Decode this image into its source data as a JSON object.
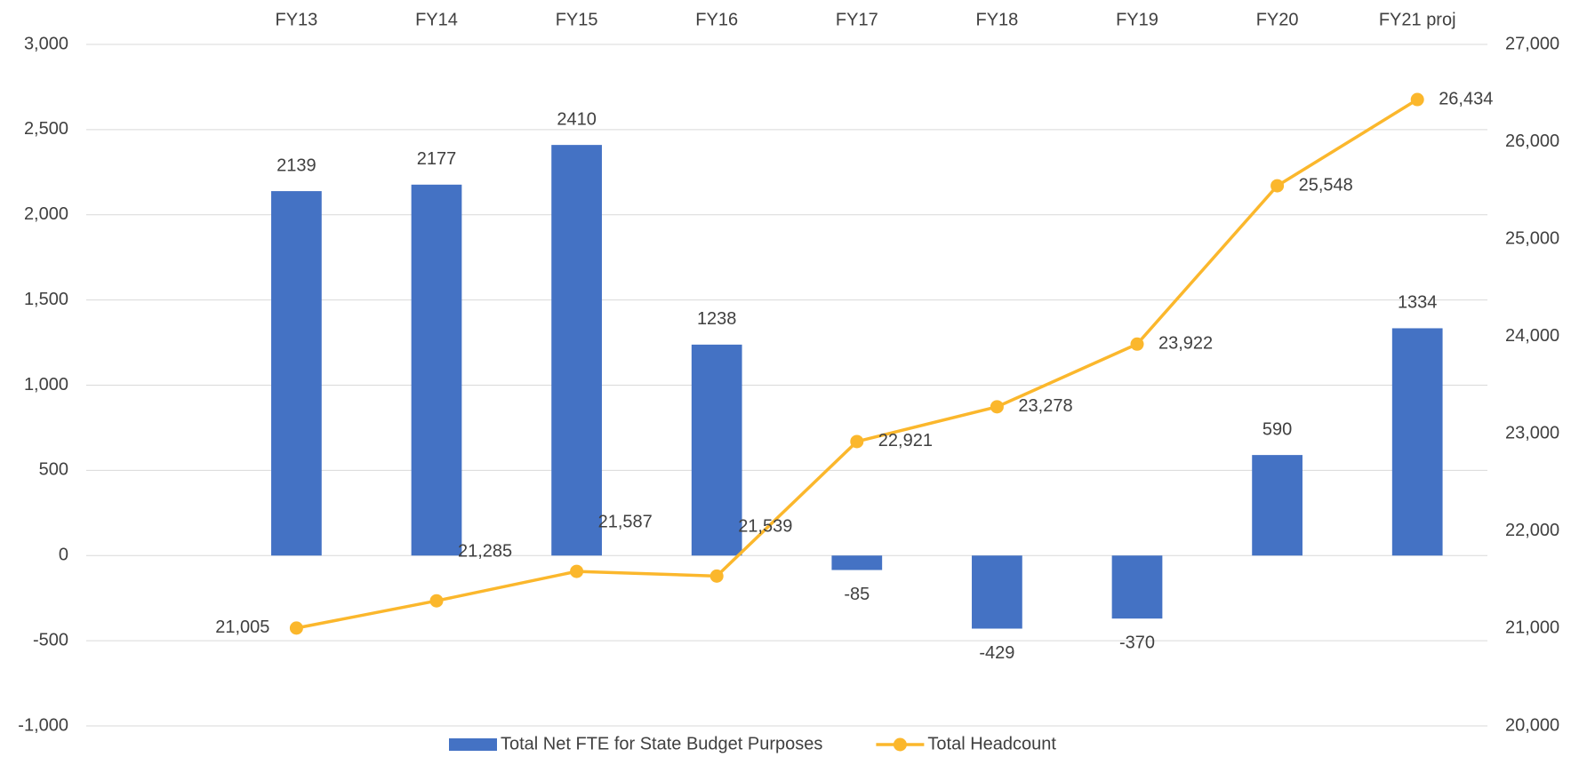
{
  "chart_data": {
    "type": "bar",
    "categories": [
      null,
      "FY13",
      "FY14",
      "FY15",
      "FY16",
      "FY17",
      "FY18",
      "FY19",
      "FY20",
      "FY21 proj"
    ],
    "series": [
      {
        "name": "Total Net FTE for State Budget Purposes",
        "color": "#4472c4",
        "type": "bar",
        "values": [
          null,
          2139,
          2177,
          2410,
          1238,
          -85,
          -429,
          -370,
          590,
          1334
        ]
      },
      {
        "name": "Total Headcount",
        "color": "#fbb72c",
        "type": "line",
        "axis": "y2",
        "values": [
          null,
          21005,
          21285,
          21587,
          21539,
          22921,
          23278,
          23922,
          25548,
          26434
        ],
        "value_labels": [
          null,
          "21,005",
          "21,285",
          "21,587",
          "21,539",
          "22,921",
          "23,278",
          "23,922",
          "25,548",
          "26,434"
        ]
      }
    ],
    "ylim": [
      -1000,
      3000
    ],
    "yticks": [
      {
        "value": -1000,
        "label": "-1,000"
      },
      -500,
      0,
      500,
      {
        "value": 1000,
        "label": "1,000"
      },
      {
        "value": 1500,
        "label": "1,500"
      },
      {
        "value": 2000,
        "label": "2,000"
      },
      {
        "value": 2500,
        "label": "2,500"
      },
      {
        "value": 3000,
        "label": "3,000"
      }
    ],
    "y2lim": [
      20000,
      27000
    ],
    "y2ticks": [
      {
        "value": 20000,
        "label": "20,000"
      },
      {
        "value": 21000,
        "label": "21,000"
      },
      {
        "value": 22000,
        "label": "22,000"
      },
      {
        "value": 23000,
        "label": "23,000"
      },
      {
        "value": 24000,
        "label": "24,000"
      },
      {
        "value": 25000,
        "label": "25,000"
      },
      {
        "value": 26000,
        "label": "26,000"
      },
      {
        "value": 27000,
        "label": "27,000"
      }
    ],
    "grid": true,
    "legend": "bottom"
  }
}
